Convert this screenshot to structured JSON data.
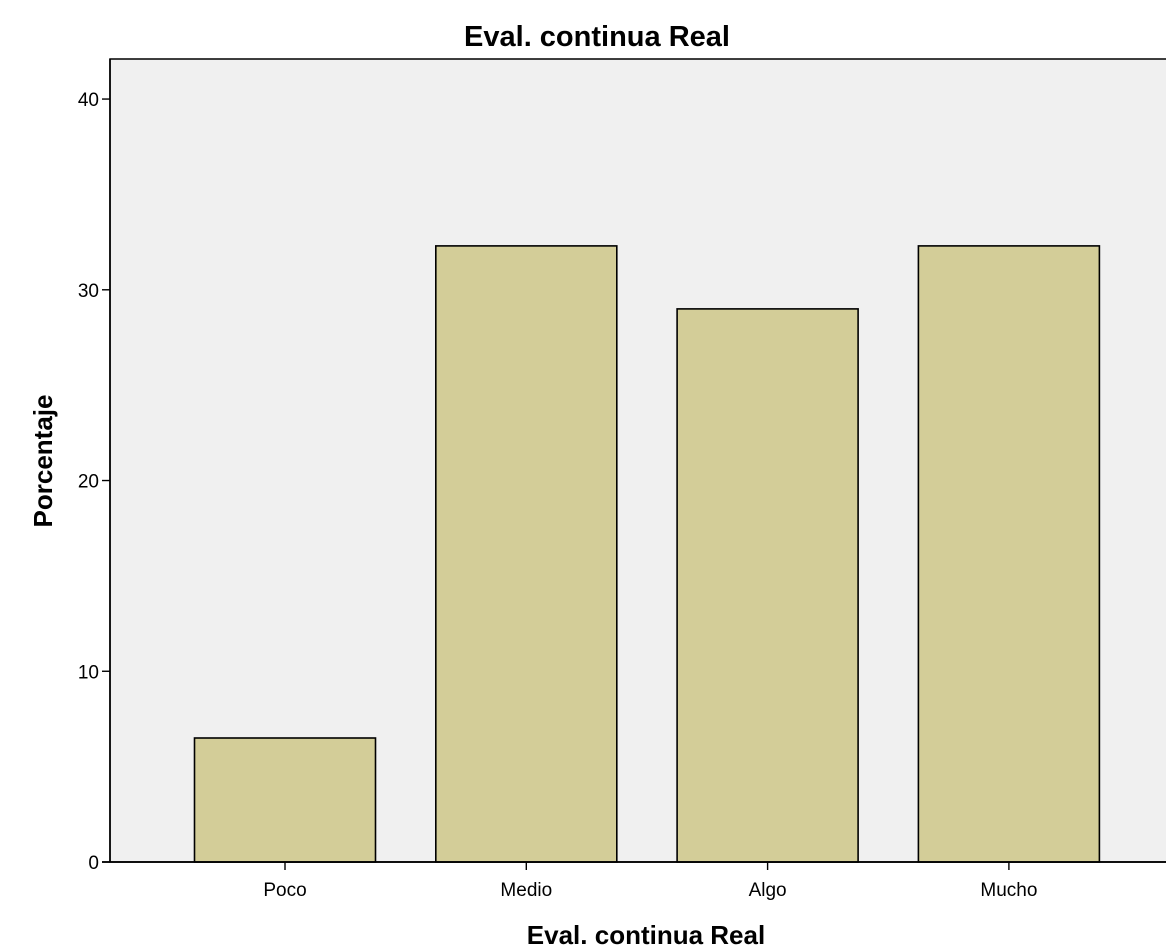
{
  "chart_data": {
    "type": "bar",
    "title": "Eval. continua Real",
    "xlabel": "Eval. continua Real",
    "ylabel": "Porcentaje",
    "categories": [
      "Poco",
      "Medio",
      "Algo",
      "Mucho"
    ],
    "values": [
      6.5,
      32.3,
      29.0,
      32.3
    ],
    "yticks": [
      0,
      10,
      20,
      30,
      40
    ],
    "ylim": [
      0,
      42.1
    ],
    "grid": false,
    "legend": "none",
    "colors": {
      "bar_fill": "#d3cd98",
      "bar_stroke": "#000000",
      "plot_background": "#f0f0f0",
      "page_background": "#ffffff"
    }
  }
}
